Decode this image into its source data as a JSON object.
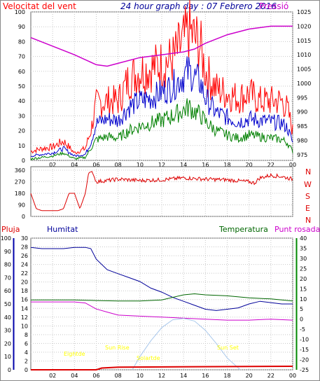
{
  "header": {
    "title": "24 hour graph day : 07 Febrero 2016",
    "left_label": "Velocitat del vent",
    "right_label": "Pressió"
  },
  "colors": {
    "wind_gust": "#ff0000",
    "wind_avg": "#0000cc",
    "wind_low": "#008000",
    "pressure": "#cc00cc",
    "direction": "#dd0000",
    "rain": "#dd0000",
    "humidity": "#000099",
    "temperature": "#006600",
    "dewpoint": "#cc00cc",
    "solar": "#a9c8ec",
    "annotation": "#ffff00",
    "background": "#ffffff"
  },
  "wind_direction": {
    "compass_labels": [
      "N",
      "W",
      "S",
      "E",
      "N"
    ]
  },
  "lower_header": {
    "rain": "Pluja",
    "humidity": "Humitat",
    "temperature": "Temperatura",
    "dewpoint": "Punt rosada"
  },
  "annotations": {
    "twilight": "Eightde",
    "sunrise": "Sun Rise",
    "solar_max": "Solartde",
    "sunset": "Sun Set"
  },
  "chart_data": [
    {
      "type": "line",
      "title": "24 hour graph day : 07 Febrero 2016",
      "x_ticks": [
        "02",
        "04",
        "06",
        "08",
        "10",
        "12",
        "14",
        "16",
        "18",
        "20",
        "22",
        "00"
      ],
      "left_axis": {
        "ticks": [
          0,
          10,
          20,
          30,
          40,
          50,
          60,
          70,
          80,
          90,
          100
        ],
        "ylim": [
          0,
          100
        ]
      },
      "right_axis": {
        "ticks": [
          975,
          980,
          985,
          990,
          995,
          1000,
          1005,
          1010,
          1015,
          1020,
          1025
        ],
        "ylim": [
          973,
          1025
        ]
      },
      "series": [
        {
          "color": "#ff0000",
          "x": [
            0,
            1,
            2,
            3,
            4,
            5,
            5.5,
            6,
            7,
            8,
            9,
            10,
            11,
            12,
            13,
            14,
            14.5,
            15,
            15.5,
            16,
            17,
            18,
            19,
            20,
            21,
            22,
            23,
            23.5,
            24
          ],
          "y": [
            6,
            8,
            9,
            13,
            5,
            8,
            20,
            38,
            40,
            40,
            55,
            60,
            62,
            65,
            68,
            80,
            87,
            82,
            78,
            60,
            48,
            45,
            42,
            45,
            40,
            40,
            40,
            35,
            20
          ]
        },
        {
          "color": "#0000cc",
          "x": [
            0,
            1,
            2,
            3,
            4,
            5,
            5.5,
            6,
            7,
            8,
            9,
            10,
            11,
            12,
            13,
            14,
            14.5,
            15,
            15.5,
            16,
            17,
            18,
            19,
            20,
            21,
            22,
            23,
            23.5,
            24
          ],
          "y": [
            3,
            4,
            5,
            8,
            3,
            4,
            12,
            25,
            28,
            27,
            36,
            40,
            42,
            46,
            50,
            57,
            60,
            56,
            53,
            42,
            32,
            29,
            26,
            28,
            27,
            26,
            25,
            22,
            12
          ]
        },
        {
          "color": "#008000",
          "x": [
            0,
            1,
            2,
            3,
            4,
            5,
            5.5,
            6,
            7,
            8,
            9,
            10,
            11,
            12,
            13,
            14,
            14.5,
            15,
            15.5,
            16,
            17,
            18,
            19,
            20,
            21,
            22,
            23,
            23.5,
            24
          ],
          "y": [
            1,
            2,
            3,
            5,
            1,
            2,
            8,
            14,
            16,
            15,
            20,
            23,
            25,
            27,
            30,
            34,
            36,
            33,
            31,
            26,
            20,
            17,
            15,
            17,
            16,
            15,
            14,
            12,
            6
          ]
        },
        {
          "color": "#cc00cc",
          "axis": "right",
          "x": [
            0,
            2,
            4,
            6,
            7,
            8,
            10,
            12,
            14,
            15,
            16,
            18,
            20,
            22,
            24
          ],
          "y": [
            1016,
            1013,
            1010,
            1006.5,
            1006,
            1007,
            1009,
            1010,
            1011,
            1012,
            1014,
            1017,
            1019,
            1020,
            1020
          ]
        }
      ]
    },
    {
      "type": "line",
      "y_ticks": [
        0,
        90,
        180,
        270,
        360
      ],
      "ylim": [
        0,
        360
      ],
      "x": [
        0,
        0.5,
        1,
        1.5,
        2,
        2.5,
        3,
        3.5,
        4,
        4.5,
        5,
        5.3,
        5.6,
        6,
        7,
        8,
        9,
        10,
        12,
        14,
        16,
        18,
        20,
        20.5,
        21,
        22,
        23,
        24
      ],
      "y": [
        180,
        60,
        45,
        45,
        45,
        45,
        60,
        180,
        180,
        60,
        180,
        340,
        350,
        270,
        280,
        290,
        285,
        280,
        285,
        300,
        290,
        285,
        270,
        260,
        300,
        320,
        310,
        290
      ]
    },
    {
      "type": "line",
      "x_ticks": [
        "02",
        "04",
        "06",
        "08",
        "10",
        "12",
        "14",
        "16",
        "18",
        "20",
        "22",
        "00"
      ],
      "humidity_axis": {
        "ticks": [
          0,
          10,
          20,
          30,
          40,
          50,
          60,
          70,
          80,
          90,
          100
        ],
        "ylim": [
          0,
          100
        ]
      },
      "rain_axis": {
        "ticks": [
          0,
          2,
          4,
          6,
          8,
          10,
          12,
          14,
          16,
          18,
          20,
          22,
          24,
          26,
          28,
          30
        ],
        "ylim": [
          0,
          30
        ]
      },
      "temperature_axis": {
        "ticks": [
          -25,
          -20,
          -15,
          -10,
          -5,
          0,
          5,
          10,
          15,
          20,
          25,
          30,
          35,
          40
        ],
        "ylim": [
          -25,
          40
        ]
      },
      "series": [
        {
          "color": "#000099",
          "axis": "humidity",
          "x": [
            0,
            1,
            2,
            3,
            4,
            5,
            5.5,
            6,
            7,
            8,
            9,
            10,
            11,
            12,
            13,
            14,
            15,
            16,
            17,
            18,
            19,
            20,
            21,
            22,
            23,
            24
          ],
          "y": [
            93,
            92,
            92,
            92,
            93,
            93,
            92,
            84,
            76,
            73,
            70,
            67,
            62,
            59,
            55,
            52,
            49,
            46,
            45,
            46,
            47,
            50,
            52,
            51,
            50,
            50
          ]
        },
        {
          "color": "#006600",
          "axis": "temperature",
          "x": [
            0,
            2,
            4,
            6,
            8,
            10,
            12,
            14,
            15,
            16,
            18,
            20,
            22,
            24
          ],
          "y": [
            9.5,
            9.5,
            9.5,
            9.2,
            9.0,
            9.0,
            9.5,
            12.0,
            12.5,
            12.0,
            11.5,
            10.5,
            10.0,
            9.0
          ]
        },
        {
          "color": "#cc00cc",
          "axis": "temperature",
          "x": [
            0,
            2,
            4,
            5,
            6,
            7,
            8,
            10,
            12,
            14,
            16,
            18,
            20,
            22,
            24
          ],
          "y": [
            8.5,
            8.5,
            8.5,
            8.0,
            5.0,
            3.5,
            2.0,
            1.5,
            1.0,
            0.5,
            0.0,
            -0.5,
            -0.5,
            0.0,
            -0.5
          ]
        },
        {
          "color": "#a9c8ec",
          "axis": "humidity",
          "x": [
            9.3,
            10,
            11,
            12,
            13,
            14,
            15,
            16,
            17,
            18,
            19.2
          ],
          "y": [
            0,
            10,
            22,
            32,
            38,
            39,
            37,
            30,
            20,
            9,
            0
          ]
        },
        {
          "color": "#dd0000",
          "axis": "rain",
          "x": [
            0,
            6,
            6.5,
            8,
            24
          ],
          "y": [
            0,
            0,
            0.4,
            0.6,
            0.8
          ]
        }
      ]
    }
  ]
}
